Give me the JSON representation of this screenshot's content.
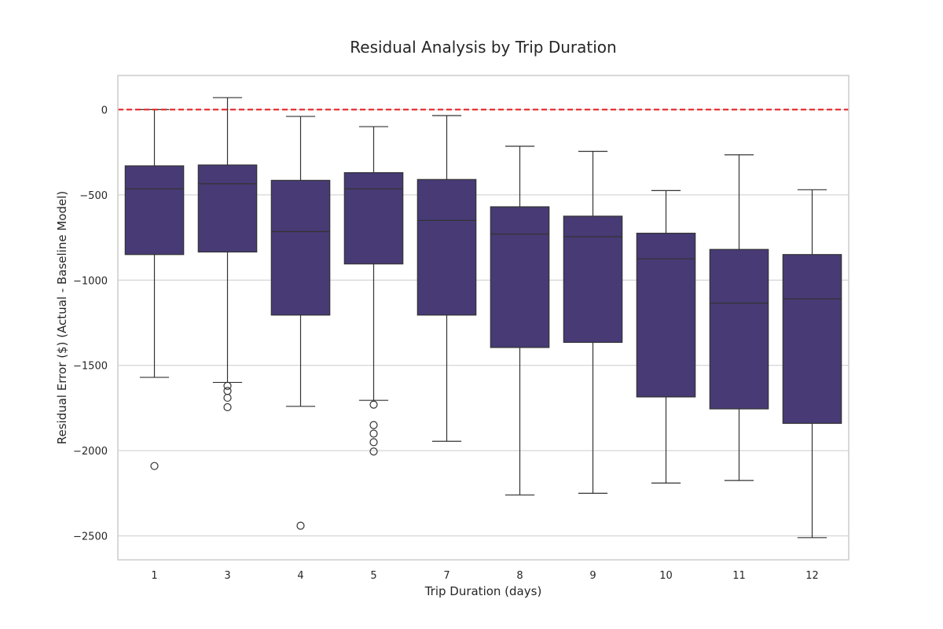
{
  "chart_data": {
    "type": "boxplot",
    "title": "Residual Analysis by Trip Duration",
    "xlabel": "Trip Duration (days)",
    "ylabel": "Residual Error ($) (Actual - Baseline Model)",
    "ylim": [
      -2640,
      200
    ],
    "yticks": [
      0,
      -500,
      -1000,
      -1500,
      -2000,
      -2500
    ],
    "ytick_labels": [
      "0",
      "−500",
      "−1000",
      "−1500",
      "−2000",
      "−2500"
    ],
    "grid": "horizontal",
    "reference_line": {
      "y": 0,
      "color": "#e31a1c",
      "style": "dashed"
    },
    "box_color": "#483a75",
    "categories": [
      "1",
      "3",
      "4",
      "5",
      "7",
      "8",
      "9",
      "10",
      "11",
      "12"
    ],
    "boxes": [
      {
        "label": "1",
        "whisker_low": -1570,
        "q1": -850,
        "median": -465,
        "q3": -330,
        "whisker_high": 0,
        "outliers": [
          -2090
        ]
      },
      {
        "label": "3",
        "whisker_low": -1600,
        "q1": -835,
        "median": -435,
        "q3": -325,
        "whisker_high": 70,
        "outliers": [
          -1620,
          -1650,
          -1690,
          -1745
        ]
      },
      {
        "label": "4",
        "whisker_low": -1740,
        "q1": -1205,
        "median": -715,
        "q3": -415,
        "whisker_high": -40,
        "outliers": [
          -2440
        ]
      },
      {
        "label": "5",
        "whisker_low": -1705,
        "q1": -905,
        "median": -465,
        "q3": -370,
        "whisker_high": -100,
        "outliers": [
          -1730,
          -1850,
          -1900,
          -1950,
          -2005
        ]
      },
      {
        "label": "7",
        "whisker_low": -1945,
        "q1": -1205,
        "median": -650,
        "q3": -410,
        "whisker_high": -35,
        "outliers": []
      },
      {
        "label": "8",
        "whisker_low": -2260,
        "q1": -1395,
        "median": -730,
        "q3": -570,
        "whisker_high": -215,
        "outliers": []
      },
      {
        "label": "9",
        "whisker_low": -2250,
        "q1": -1365,
        "median": -745,
        "q3": -625,
        "whisker_high": -245,
        "outliers": []
      },
      {
        "label": "10",
        "whisker_low": -2190,
        "q1": -1685,
        "median": -875,
        "q3": -725,
        "whisker_high": -475,
        "outliers": []
      },
      {
        "label": "11",
        "whisker_low": -2175,
        "q1": -1755,
        "median": -1135,
        "q3": -820,
        "whisker_high": -265,
        "outliers": []
      },
      {
        "label": "12",
        "whisker_low": -2510,
        "q1": -1840,
        "median": -1110,
        "q3": -850,
        "whisker_high": -470,
        "outliers": []
      }
    ]
  }
}
